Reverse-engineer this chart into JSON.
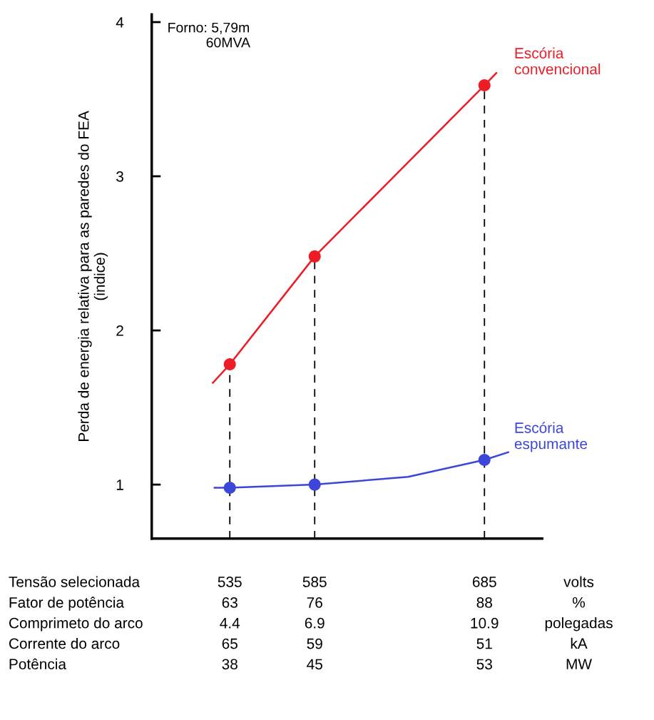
{
  "chart_data": {
    "type": "line",
    "ylabel": "Perda de energia relativa para as paredes do FEA\n(indice)",
    "xlim": [
      489,
      719
    ],
    "ylim": [
      0.65,
      4.05
    ],
    "yticks": [
      1,
      2,
      3,
      4
    ],
    "xticks": [
      535,
      585,
      685
    ],
    "series": [
      {
        "color": "#ee1c25",
        "x": [
          525,
          535,
          585,
          685,
          692
        ],
        "values": [
          1.66,
          1.78,
          2.48,
          3.59,
          3.67
        ]
      },
      {
        "name": "Escória\nconvencional",
        "type": "scatter",
        "marker": "circle",
        "color": "#ee1c25",
        "x": [
          535,
          585,
          685
        ],
        "values": [
          1.78,
          2.48,
          3.59
        ]
      },
      {
        "color": "#3c46d8",
        "x": [
          526,
          535,
          585,
          640,
          685,
          699
        ],
        "values": [
          0.98,
          0.98,
          1.0,
          1.05,
          1.16,
          1.21
        ]
      },
      {
        "name": "Escória\nespumante",
        "type": "scatter",
        "marker": "circle",
        "color": "#3c46d8",
        "x": [
          535,
          585,
          685
        ],
        "values": [
          0.98,
          1.0,
          1.16
        ]
      }
    ],
    "ref_lines": [
      {
        "axis": "x",
        "value": 535,
        "color": "#000000",
        "line_style": "dashed"
      },
      {
        "axis": "x",
        "value": 585,
        "color": "#000000",
        "line_style": "dashed"
      },
      {
        "axis": "x",
        "value": 685,
        "color": "#000000",
        "line_style": "dashed"
      }
    ],
    "annotations": [
      "Forno: 5,79m\n          60MVA",
      "Tensão selecionada\nFator de potência\nComprimeto do arco\nCorrente do arco\nPotência",
      "volts\n%\npolegadas\nkA\nMW",
      "63\n4.4\n65\n38",
      "76\n6.9\n59\n45",
      "88\n10.9\n51\n53"
    ],
    "grid": false
  }
}
